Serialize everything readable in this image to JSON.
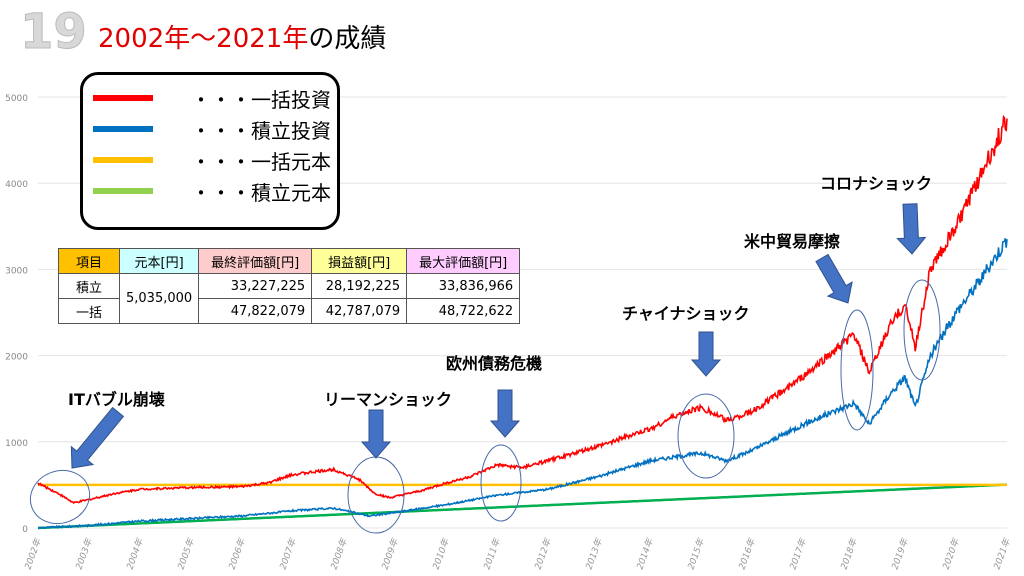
{
  "slide_number": "19",
  "title": {
    "main": "2002年〜2021年",
    "suffix": "の成績"
  },
  "legend": [
    {
      "label": "・・・一括投資",
      "color": "#ff0000"
    },
    {
      "label": "・・・積立投資",
      "color": "#0070c0"
    },
    {
      "label": "・・・一括元本",
      "color": "#ffc000"
    },
    {
      "label": "・・・積立元本",
      "color": "#92d050"
    }
  ],
  "table": {
    "headers": [
      "項目",
      "元本[円]",
      "最終評価額[円]",
      "損益額[円]",
      "最大評価額[円]"
    ],
    "header_colors": [
      "#ffc000",
      "#ccffff",
      "#ffcccc",
      "#ffff99",
      "#ffccff"
    ],
    "rows": [
      {
        "name": "積立",
        "principal": "5,035,000",
        "final": "33,227,225",
        "profit": "28,192,225",
        "max": "33,836,966"
      },
      {
        "name": "一括",
        "final": "47,822,079",
        "profit": "42,787,079",
        "max": "48,722,622"
      }
    ]
  },
  "annotations": [
    "ITバブル崩壊",
    "リーマンショック",
    "欧州債務危機",
    "チャイナショック",
    "米中貿易摩擦",
    "コロナショック"
  ],
  "chart_data": {
    "type": "line",
    "xlim": [
      2002,
      2021
    ],
    "ylim": [
      0,
      5000
    ],
    "yticks": [
      0,
      1000,
      2000,
      3000,
      4000,
      5000
    ],
    "xticks": [
      "2002年",
      "2003年",
      "2004年",
      "2005年",
      "2006年",
      "2007年",
      "2008年",
      "2009年",
      "2010年",
      "2011年",
      "2012年",
      "2013年",
      "2014年",
      "2015年",
      "2016年",
      "2017年",
      "2018年",
      "2019年",
      "2020年",
      "2021年"
    ],
    "series": [
      {
        "name": "一括投資",
        "color": "#ff0000",
        "points": [
          [
            2002,
            520
          ],
          [
            2002.4,
            400
          ],
          [
            2002.7,
            290
          ],
          [
            2003,
            330
          ],
          [
            2003.5,
            400
          ],
          [
            2004,
            450
          ],
          [
            2005,
            470
          ],
          [
            2006,
            480
          ],
          [
            2006.5,
            520
          ],
          [
            2007,
            620
          ],
          [
            2007.8,
            680
          ],
          [
            2008.3,
            560
          ],
          [
            2008.6,
            400
          ],
          [
            2008.9,
            350
          ],
          [
            2009.5,
            430
          ],
          [
            2010,
            520
          ],
          [
            2010.5,
            600
          ],
          [
            2011,
            730
          ],
          [
            2011.5,
            700
          ],
          [
            2012,
            780
          ],
          [
            2013,
            950
          ],
          [
            2014,
            1150
          ],
          [
            2014.5,
            1300
          ],
          [
            2015,
            1400
          ],
          [
            2015.5,
            1250
          ],
          [
            2016,
            1350
          ],
          [
            2017,
            1750
          ],
          [
            2017.5,
            2000
          ],
          [
            2018,
            2250
          ],
          [
            2018.3,
            1800
          ],
          [
            2018.7,
            2350
          ],
          [
            2019,
            2600
          ],
          [
            2019.2,
            2100
          ],
          [
            2019.5,
            3000
          ],
          [
            2020,
            3500
          ],
          [
            2020.5,
            4100
          ],
          [
            2021,
            4750
          ]
        ]
      },
      {
        "name": "積立投資",
        "color": "#0070c0",
        "points": [
          [
            2002,
            0
          ],
          [
            2003,
            30
          ],
          [
            2004,
            80
          ],
          [
            2005,
            110
          ],
          [
            2006,
            140
          ],
          [
            2007,
            200
          ],
          [
            2007.8,
            230
          ],
          [
            2008.5,
            140
          ],
          [
            2009,
            180
          ],
          [
            2010,
            270
          ],
          [
            2011,
            380
          ],
          [
            2012,
            450
          ],
          [
            2013,
            600
          ],
          [
            2014,
            780
          ],
          [
            2015,
            870
          ],
          [
            2015.5,
            780
          ],
          [
            2016,
            900
          ],
          [
            2017,
            1200
          ],
          [
            2018,
            1450
          ],
          [
            2018.3,
            1200
          ],
          [
            2018.7,
            1550
          ],
          [
            2019,
            1750
          ],
          [
            2019.2,
            1400
          ],
          [
            2019.5,
            2000
          ],
          [
            2020,
            2500
          ],
          [
            2020.5,
            2900
          ],
          [
            2021,
            3350
          ]
        ]
      },
      {
        "name": "一括元本",
        "color": "#ffc000",
        "points": [
          [
            2002,
            500
          ],
          [
            2021,
            500
          ]
        ]
      },
      {
        "name": "積立元本",
        "color": "#00b050",
        "points": [
          [
            2002,
            0
          ],
          [
            2021,
            503.5
          ]
        ]
      }
    ]
  }
}
